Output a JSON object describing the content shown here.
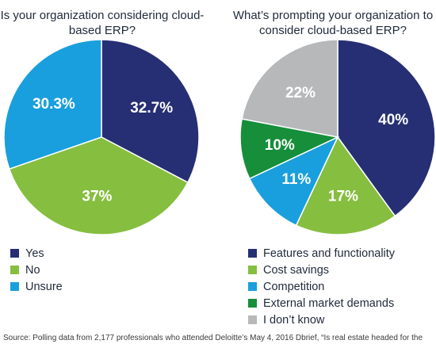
{
  "colors": {
    "navy": "#262f73",
    "green": "#86be3f",
    "blue": "#199fdd",
    "dark_green": "#178e3a",
    "gray": "#b6b8ba"
  },
  "chart_data": [
    {
      "type": "pie",
      "title": "Is your organization considering cloud-based ERP?",
      "slices": [
        {
          "label": "Yes",
          "value": 32.7,
          "text": "32.7%",
          "color": "#262f73"
        },
        {
          "label": "No",
          "value": 37,
          "text": "37%",
          "color": "#86be3f"
        },
        {
          "label": "Unsure",
          "value": 30.3,
          "text": "30.3%",
          "color": "#199fdd"
        }
      ],
      "legend_position": "bottom-left"
    },
    {
      "type": "pie",
      "title": "What’s prompting your organization to consider cloud-based ERP?",
      "slices": [
        {
          "label": "Features and functionality",
          "value": 40,
          "text": "40%",
          "color": "#262f73"
        },
        {
          "label": "Cost savings",
          "value": 17,
          "text": "17%",
          "color": "#86be3f"
        },
        {
          "label": "Competition",
          "value": 11,
          "text": "11%",
          "color": "#199fdd"
        },
        {
          "label": "External market demands",
          "value": 10,
          "text": "10%",
          "color": "#178e3a"
        },
        {
          "label": "I don’t know",
          "value": 22,
          "text": "22%",
          "color": "#b6b8ba"
        }
      ],
      "legend_position": "bottom-left"
    }
  ],
  "source_text": "Source: Polling data from 2,177 professionals who attended Deloitte’s May 4, 2016 Dbrief, “Is real estate headed for the"
}
